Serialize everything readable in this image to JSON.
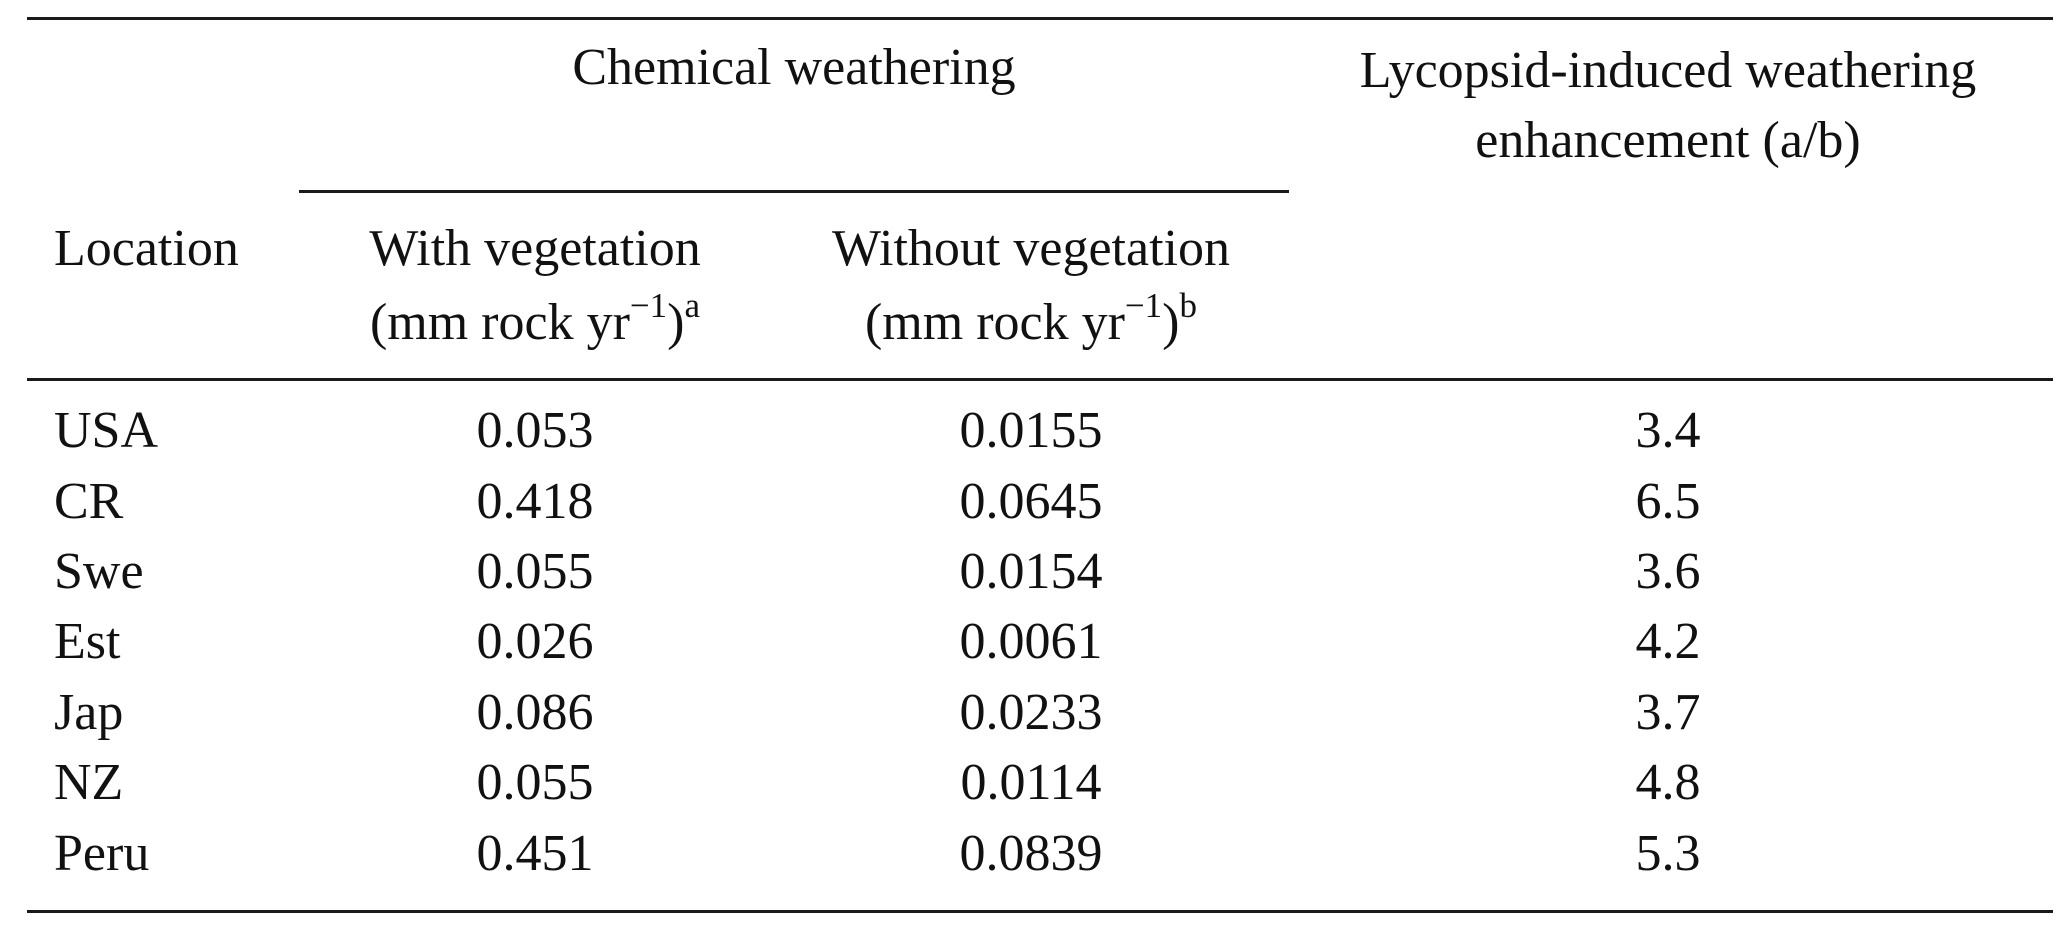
{
  "table": {
    "group_header": "Chemical weathering",
    "enhancement_header": [
      "Lycopsid-induced weathering",
      "enhancement (a/b)"
    ],
    "location_header": "Location",
    "with_veg_header": {
      "line1": "With vegetation",
      "line2_pre": "(mm rock yr",
      "line2_exp": "−1",
      "line2_post": ")",
      "note": "a"
    },
    "without_veg_header": {
      "line1": "Without vegetation",
      "line2_pre": "(mm rock yr",
      "line2_exp": "−1",
      "line2_post": ")",
      "note": "b"
    },
    "rows": [
      {
        "location": "USA",
        "with_veg": "0.053",
        "without_veg": "0.0155",
        "enhancement": "3.4"
      },
      {
        "location": "CR",
        "with_veg": "0.418",
        "without_veg": "0.0645",
        "enhancement": "6.5"
      },
      {
        "location": "Swe",
        "with_veg": "0.055",
        "without_veg": "0.0154",
        "enhancement": "3.6"
      },
      {
        "location": "Est",
        "with_veg": "0.026",
        "without_veg": "0.0061",
        "enhancement": "4.2"
      },
      {
        "location": "Jap",
        "with_veg": "0.086",
        "without_veg": "0.0233",
        "enhancement": "3.7"
      },
      {
        "location": "NZ",
        "with_veg": "0.055",
        "without_veg": "0.0114",
        "enhancement": "4.8"
      },
      {
        "location": "Peru",
        "with_veg": "0.451",
        "without_veg": "0.0839",
        "enhancement": "5.3"
      }
    ]
  }
}
